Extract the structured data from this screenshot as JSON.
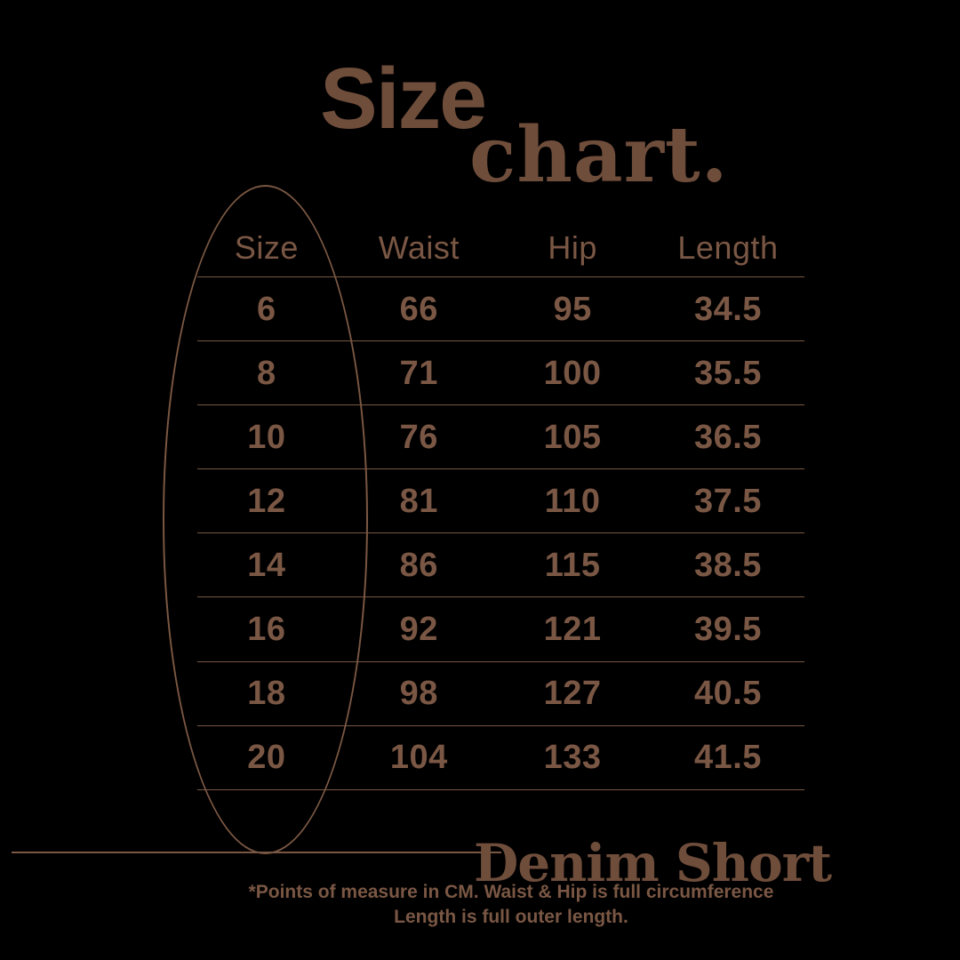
{
  "colors": {
    "bg": "#000000",
    "ink": "#6f4d3b",
    "ink-soft": "#7a5744",
    "stroke": "#7a5743"
  },
  "title": {
    "word_sans": "Size",
    "word_serif": "chart."
  },
  "chart_data": {
    "type": "table",
    "title": "Size chart.",
    "columns": [
      "Size",
      "Waist",
      "Hip",
      "Length"
    ],
    "rows": [
      [
        "6",
        "66",
        "95",
        "34.5"
      ],
      [
        "8",
        "71",
        "100",
        "35.5"
      ],
      [
        "10",
        "76",
        "105",
        "36.5"
      ],
      [
        "12",
        "81",
        "110",
        "37.5"
      ],
      [
        "14",
        "86",
        "115",
        "38.5"
      ],
      [
        "16",
        "92",
        "121",
        "39.5"
      ],
      [
        "18",
        "98",
        "127",
        "40.5"
      ],
      [
        "20",
        "104",
        "133",
        "41.5"
      ]
    ],
    "highlighted_column": "Size",
    "units": "cm"
  },
  "product_label": "Denim Short",
  "footnote": {
    "line1": "*Points of measure in CM. Waist & Hip is full circumference",
    "line2": "Length is full outer length."
  }
}
